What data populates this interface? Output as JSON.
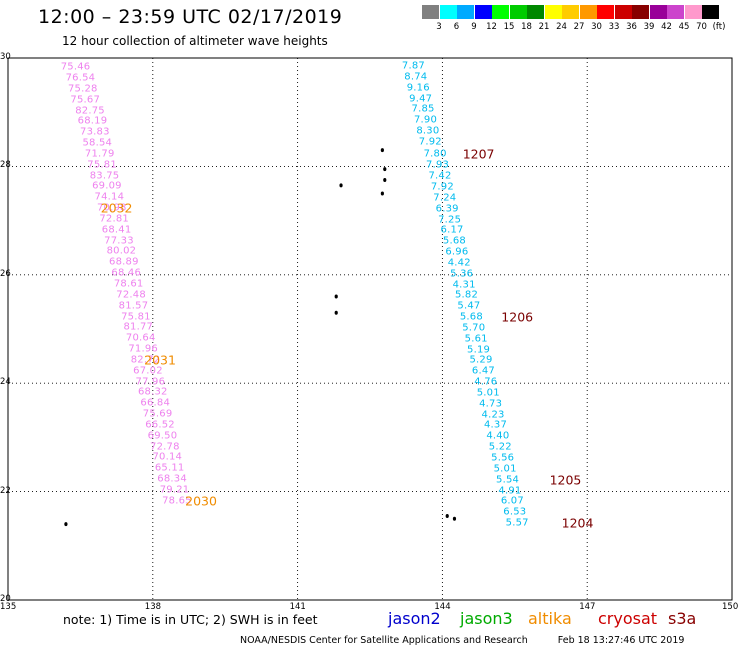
{
  "title": "12:00 – 23:59 UTC 02/17/2019",
  "subtitle": "12 hour collection of altimeter wave heights",
  "legend": {
    "colors": [
      "#808080",
      "#00ffff",
      "#00aaff",
      "#0000ff",
      "#00ff00",
      "#00cc00",
      "#008800",
      "#ffff00",
      "#ffcc00",
      "#ff9900",
      "#ff0000",
      "#cc0000",
      "#880000",
      "#990099",
      "#cc44cc",
      "#ff99cc",
      "#000000"
    ],
    "labels": [
      "3",
      "6",
      "9",
      "12",
      "15",
      "18",
      "21",
      "24",
      "27",
      "30",
      "33",
      "36",
      "39",
      "42",
      "45",
      "70",
      "(ft)"
    ]
  },
  "axes": {
    "x_ticks": [
      "135",
      "138",
      "141",
      "144",
      "147",
      "150"
    ],
    "y_ticks": [
      "30",
      "28",
      "26",
      "24",
      "22",
      "20"
    ]
  },
  "chart_data": {
    "type": "scatter",
    "xlim": [
      135,
      150
    ],
    "ylim": [
      20,
      30
    ],
    "grid": true,
    "tracks": [
      {
        "satellite": "cryosat",
        "color": "#ee82ee",
        "points": [
          {
            "lon": 136.4,
            "lat": 29.83,
            "v": "75.46"
          },
          {
            "lon": 136.5,
            "lat": 29.63,
            "v": "76.54"
          },
          {
            "lon": 136.55,
            "lat": 29.43,
            "v": "75.28"
          },
          {
            "lon": 136.6,
            "lat": 29.23,
            "v": "75.67"
          },
          {
            "lon": 136.7,
            "lat": 29.03,
            "v": "82.75"
          },
          {
            "lon": 136.75,
            "lat": 28.83,
            "v": "68.19"
          },
          {
            "lon": 136.8,
            "lat": 28.63,
            "v": "73.83"
          },
          {
            "lon": 136.85,
            "lat": 28.43,
            "v": "58.54"
          },
          {
            "lon": 136.9,
            "lat": 28.23,
            "v": "71.79"
          },
          {
            "lon": 136.95,
            "lat": 28.03,
            "v": "75.81"
          },
          {
            "lon": 137.0,
            "lat": 27.83,
            "v": "83.75"
          },
          {
            "lon": 137.05,
            "lat": 27.63,
            "v": "69.09"
          },
          {
            "lon": 137.1,
            "lat": 27.43,
            "v": "74.14"
          },
          {
            "lon": 137.15,
            "lat": 27.23,
            "v": "70.98"
          },
          {
            "lon": 137.2,
            "lat": 27.03,
            "v": "72.81"
          },
          {
            "lon": 137.25,
            "lat": 26.83,
            "v": "68.41"
          },
          {
            "lon": 137.3,
            "lat": 26.63,
            "v": "77.33"
          },
          {
            "lon": 137.35,
            "lat": 26.43,
            "v": "80.02"
          },
          {
            "lon": 137.4,
            "lat": 26.23,
            "v": "68.89"
          },
          {
            "lon": 137.45,
            "lat": 26.03,
            "v": "68.46"
          },
          {
            "lon": 137.5,
            "lat": 25.83,
            "v": "78.61"
          },
          {
            "lon": 137.55,
            "lat": 25.63,
            "v": "72.48"
          },
          {
            "lon": 137.6,
            "lat": 25.43,
            "v": "81.57"
          },
          {
            "lon": 137.65,
            "lat": 25.23,
            "v": "75.81"
          },
          {
            "lon": 137.7,
            "lat": 25.03,
            "v": "81.77"
          },
          {
            "lon": 137.75,
            "lat": 24.83,
            "v": "70.64"
          },
          {
            "lon": 137.8,
            "lat": 24.63,
            "v": "71.96"
          },
          {
            "lon": 137.85,
            "lat": 24.43,
            "v": "82.72"
          },
          {
            "lon": 137.9,
            "lat": 24.23,
            "v": "67.02"
          },
          {
            "lon": 137.95,
            "lat": 24.03,
            "v": "77.96"
          },
          {
            "lon": 138.0,
            "lat": 23.83,
            "v": "68.32"
          },
          {
            "lon": 138.05,
            "lat": 23.63,
            "v": "66.84"
          },
          {
            "lon": 138.1,
            "lat": 23.43,
            "v": "75.69"
          },
          {
            "lon": 138.15,
            "lat": 23.23,
            "v": "66.52"
          },
          {
            "lon": 138.2,
            "lat": 23.03,
            "v": "69.50"
          },
          {
            "lon": 138.25,
            "lat": 22.83,
            "v": "72.78"
          },
          {
            "lon": 138.3,
            "lat": 22.63,
            "v": "70.14"
          },
          {
            "lon": 138.35,
            "lat": 22.43,
            "v": "65.11"
          },
          {
            "lon": 138.4,
            "lat": 22.23,
            "v": "68.34"
          },
          {
            "lon": 138.45,
            "lat": 22.03,
            "v": "79.21"
          },
          {
            "lon": 138.5,
            "lat": 21.83,
            "v": "78.65"
          }
        ]
      },
      {
        "satellite": "jason2",
        "color": "#00bbee",
        "points": [
          {
            "lon": 143.4,
            "lat": 29.85,
            "v": "7.87"
          },
          {
            "lon": 143.45,
            "lat": 29.65,
            "v": "8.74"
          },
          {
            "lon": 143.5,
            "lat": 29.45,
            "v": "9.16"
          },
          {
            "lon": 143.55,
            "lat": 29.25,
            "v": "9.47"
          },
          {
            "lon": 143.6,
            "lat": 29.05,
            "v": "7.85"
          },
          {
            "lon": 143.65,
            "lat": 28.85,
            "v": "7.90"
          },
          {
            "lon": 143.7,
            "lat": 28.65,
            "v": "8.30"
          },
          {
            "lon": 143.75,
            "lat": 28.45,
            "v": "7.92"
          },
          {
            "lon": 143.85,
            "lat": 28.22,
            "v": "7.80"
          },
          {
            "lon": 143.9,
            "lat": 28.02,
            "v": "7.93"
          },
          {
            "lon": 143.95,
            "lat": 27.82,
            "v": "7.42"
          },
          {
            "lon": 144.0,
            "lat": 27.62,
            "v": "7.92"
          },
          {
            "lon": 144.05,
            "lat": 27.42,
            "v": "7.24"
          },
          {
            "lon": 144.1,
            "lat": 27.22,
            "v": "6.39"
          },
          {
            "lon": 144.15,
            "lat": 27.02,
            "v": "7.25"
          },
          {
            "lon": 144.2,
            "lat": 26.82,
            "v": "6.17"
          },
          {
            "lon": 144.25,
            "lat": 26.62,
            "v": "5.68"
          },
          {
            "lon": 144.3,
            "lat": 26.42,
            "v": "6.96"
          },
          {
            "lon": 144.35,
            "lat": 26.22,
            "v": "4.42"
          },
          {
            "lon": 144.4,
            "lat": 26.02,
            "v": "5.36"
          },
          {
            "lon": 144.45,
            "lat": 25.82,
            "v": "4.31"
          },
          {
            "lon": 144.5,
            "lat": 25.62,
            "v": "5.82"
          },
          {
            "lon": 144.55,
            "lat": 25.42,
            "v": "5.47"
          },
          {
            "lon": 144.6,
            "lat": 25.22,
            "v": "5.68"
          },
          {
            "lon": 144.65,
            "lat": 25.02,
            "v": "5.70"
          },
          {
            "lon": 144.7,
            "lat": 24.82,
            "v": "5.61"
          },
          {
            "lon": 144.75,
            "lat": 24.62,
            "v": "5.19"
          },
          {
            "lon": 144.8,
            "lat": 24.42,
            "v": "5.29"
          },
          {
            "lon": 144.85,
            "lat": 24.22,
            "v": "6.47"
          },
          {
            "lon": 144.9,
            "lat": 24.02,
            "v": "4.76"
          },
          {
            "lon": 144.95,
            "lat": 23.82,
            "v": "5.01"
          },
          {
            "lon": 145.0,
            "lat": 23.62,
            "v": "4.73"
          },
          {
            "lon": 145.05,
            "lat": 23.42,
            "v": "4.23"
          },
          {
            "lon": 145.1,
            "lat": 23.22,
            "v": "4.37"
          },
          {
            "lon": 145.15,
            "lat": 23.02,
            "v": "4.40"
          },
          {
            "lon": 145.2,
            "lat": 22.82,
            "v": "5.22"
          },
          {
            "lon": 145.25,
            "lat": 22.62,
            "v": "5.56"
          },
          {
            "lon": 145.3,
            "lat": 22.42,
            "v": "5.01"
          },
          {
            "lon": 145.35,
            "lat": 22.22,
            "v": "5.54"
          },
          {
            "lon": 145.4,
            "lat": 22.02,
            "v": "4.91"
          },
          {
            "lon": 145.45,
            "lat": 21.82,
            "v": "6.07"
          },
          {
            "lon": 145.5,
            "lat": 21.62,
            "v": "6.53"
          },
          {
            "lon": 145.55,
            "lat": 21.42,
            "v": "5.57"
          }
        ]
      }
    ],
    "time_labels": [
      {
        "lon": 137.25,
        "lat": 27.23,
        "text": "2032",
        "color": "#f08c00"
      },
      {
        "lon": 138.15,
        "lat": 24.43,
        "text": "2031",
        "color": "#f08c00"
      },
      {
        "lon": 139.0,
        "lat": 21.83,
        "text": "2030",
        "color": "#f08c00"
      },
      {
        "lon": 144.75,
        "lat": 28.22,
        "text": "1207",
        "color": "#7a0000"
      },
      {
        "lon": 145.55,
        "lat": 25.22,
        "text": "1206",
        "color": "#7a0000"
      },
      {
        "lon": 146.55,
        "lat": 22.22,
        "text": "1205",
        "color": "#7a0000"
      },
      {
        "lon": 146.8,
        "lat": 21.42,
        "text": "1204",
        "color": "#7a0000"
      }
    ]
  },
  "note": "note: 1) Time is in UTC; 2) SWH is in feet",
  "satellites": [
    {
      "name": "jason2",
      "color": "#0000cc"
    },
    {
      "name": "jason3",
      "color": "#00aa00"
    },
    {
      "name": "altika",
      "color": "#f08c00"
    },
    {
      "name": "cryosat",
      "color": "#cc0000"
    },
    {
      "name": "s3a",
      "color": "#880000"
    }
  ],
  "credit": "NOAA/NESDIS Center for Satellite Applications and Research",
  "timestamp": "Feb 18 13:27:46 UTC 2019"
}
